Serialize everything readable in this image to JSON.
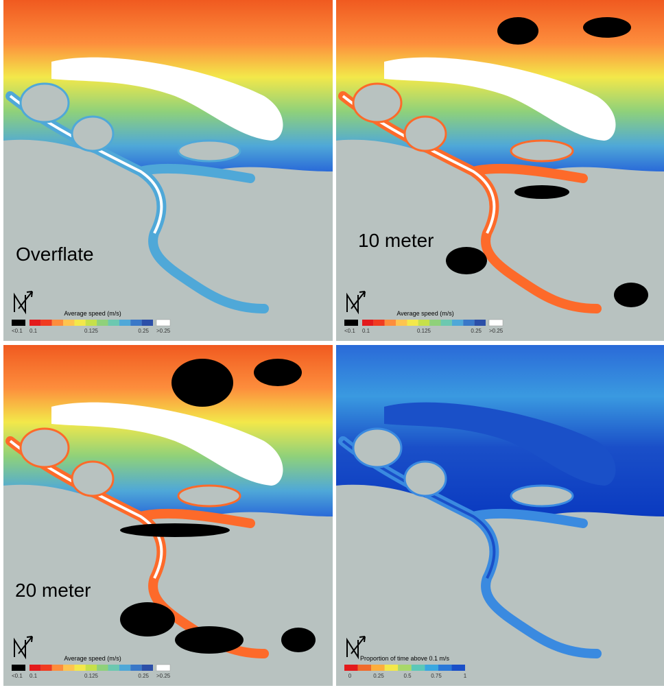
{
  "panels": [
    {
      "label": "Overflate",
      "legend": {
        "title": "Average speed (m/s)",
        "scale": "speed",
        "labels": [
          "<0.1",
          "0.1",
          "0.125",
          "0.25",
          ">0.25"
        ]
      }
    },
    {
      "label": "10 meter",
      "legend": {
        "title": "Average speed (m/s)",
        "scale": "speed",
        "labels": [
          "<0.1",
          "0.1",
          "0.125",
          "0.25",
          ">0.25"
        ]
      }
    },
    {
      "label": "20 meter",
      "legend": {
        "title": "Average speed (m/s)",
        "scale": "speed",
        "labels": [
          "<0.1",
          "0.1",
          "0.125",
          "0.25",
          ">0.25"
        ]
      }
    },
    {
      "legend": {
        "title": "Proportion of time above 0.1 m/s",
        "scale": "proportion",
        "labels": [
          "0",
          "0.25",
          "0.5",
          "0.75",
          "1"
        ]
      }
    }
  ],
  "legend_scales": {
    "speed": {
      "below": "#000000",
      "colors": [
        "#e31a1c",
        "#f03b20",
        "#fd8d3c",
        "#fec44f",
        "#f3e84a",
        "#c6e04a",
        "#8fd17a",
        "#6cc8b0",
        "#4fa8d8",
        "#3a78c8",
        "#2c4fa8"
      ],
      "above": "#ffffff"
    },
    "proportion": {
      "colors": [
        "#e31a1c",
        "#f06a2a",
        "#fdae3c",
        "#f3e84a",
        "#a8d86a",
        "#5cc8b8",
        "#3aa8e0",
        "#2a78d8",
        "#1a4fc8"
      ]
    }
  }
}
